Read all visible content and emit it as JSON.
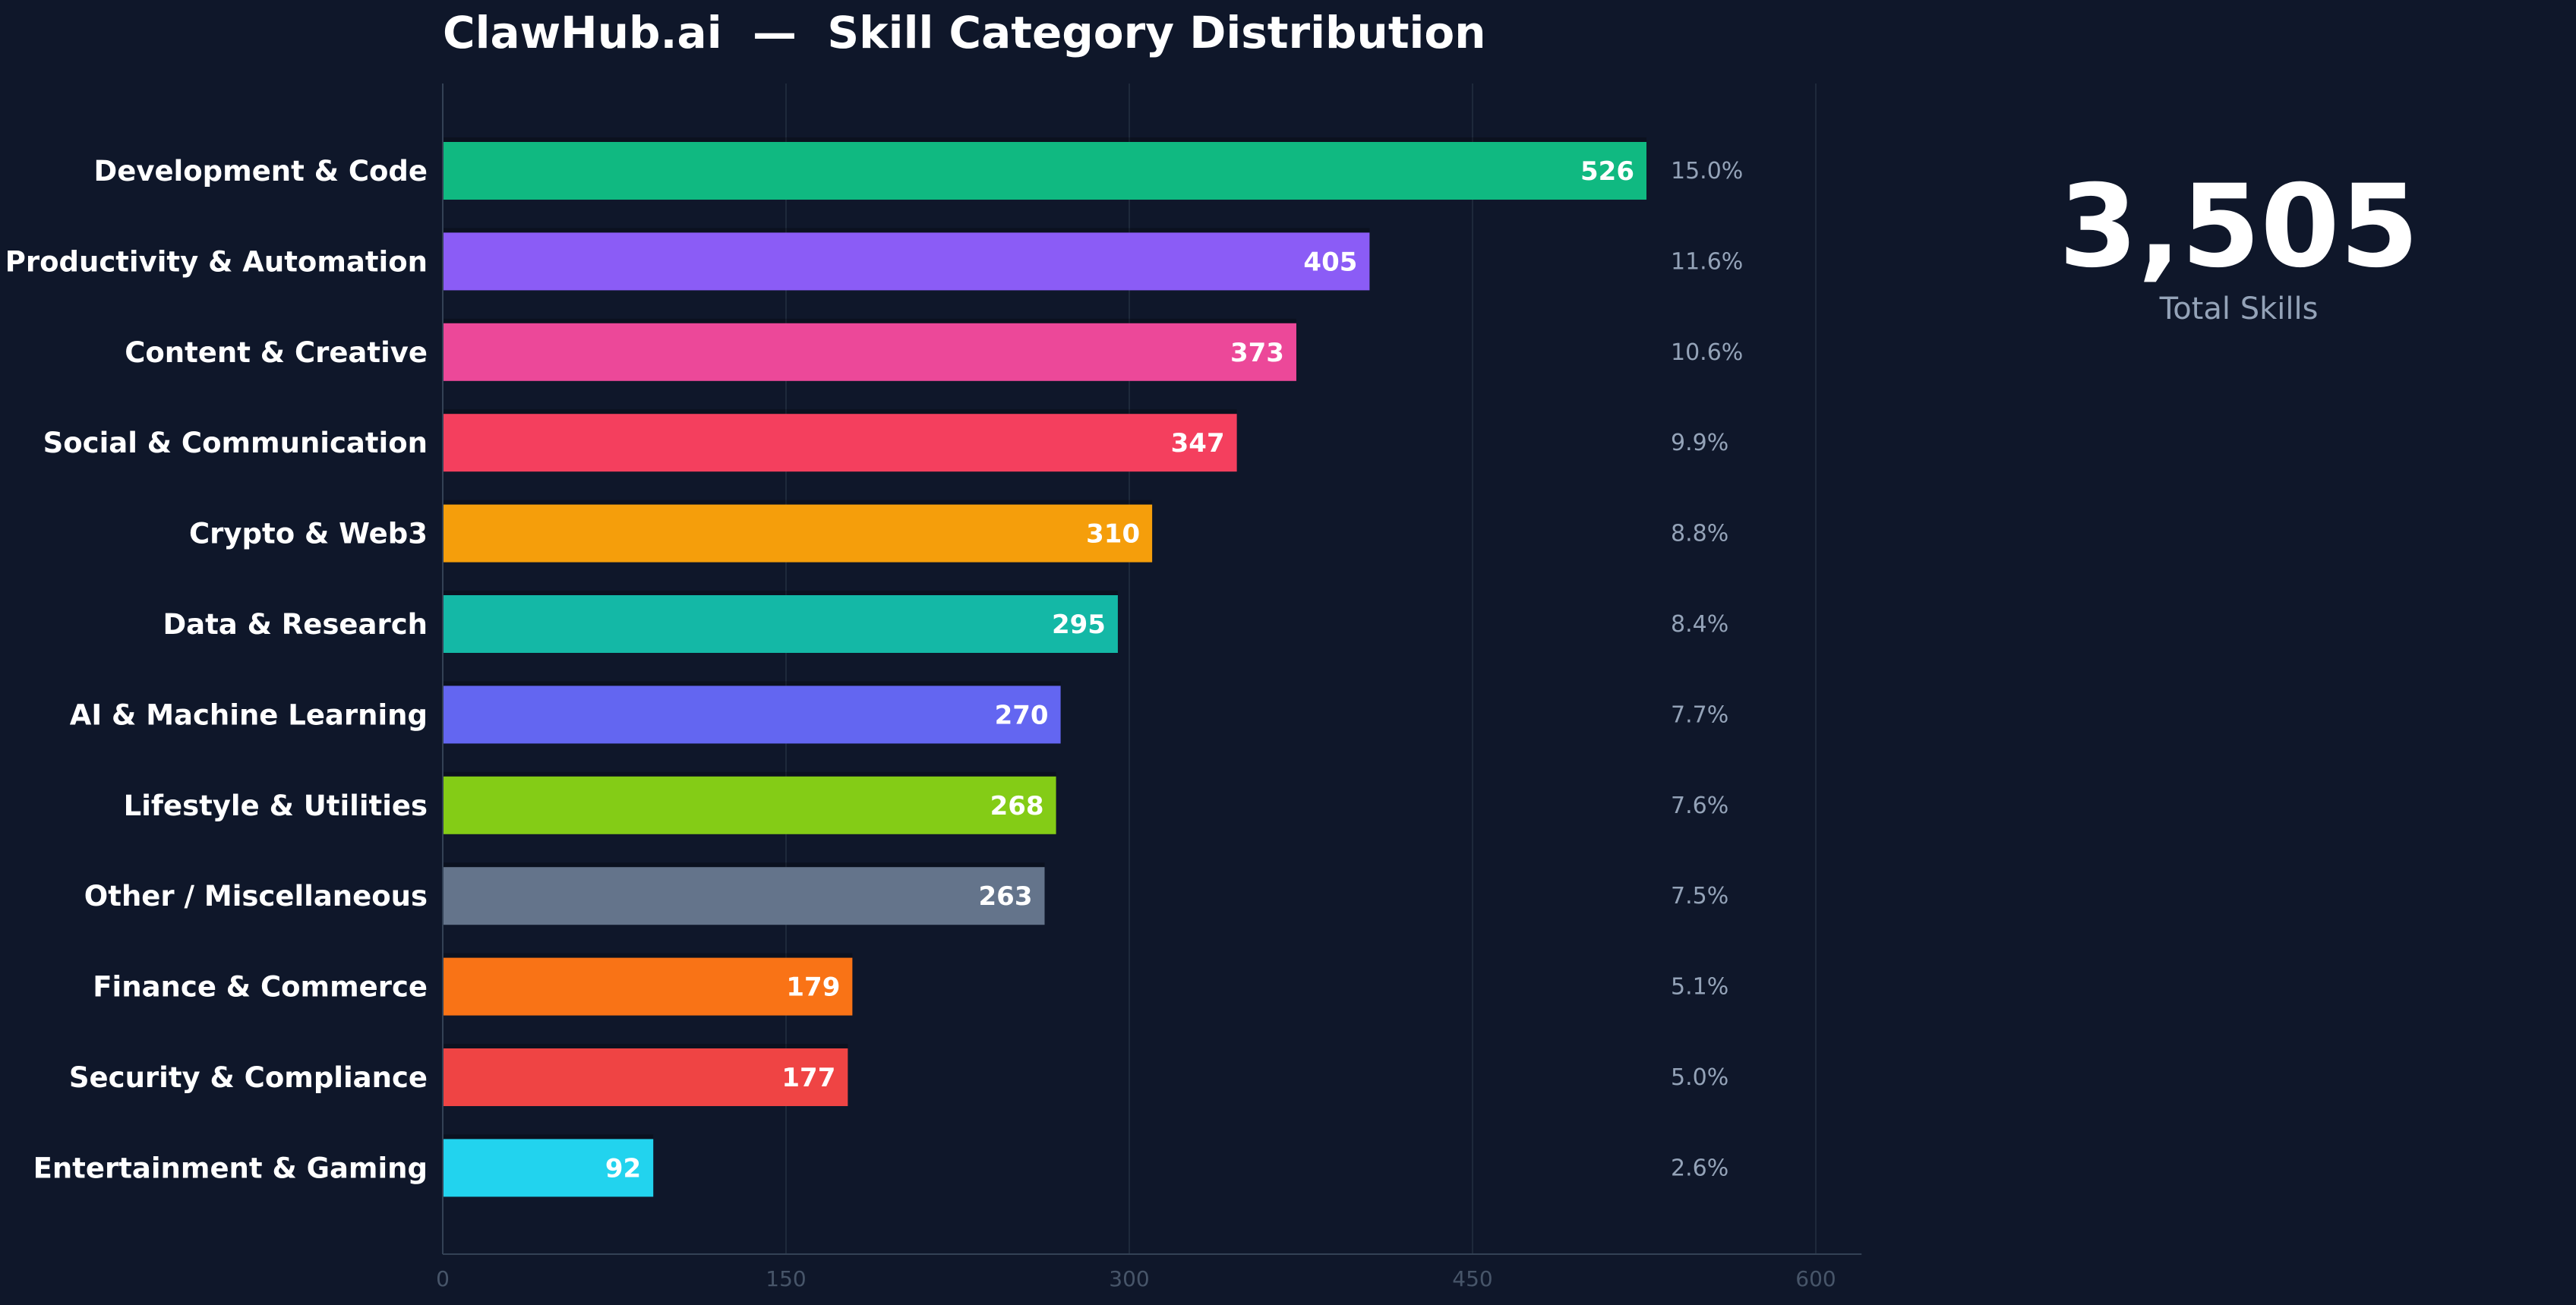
{
  "chart_data": {
    "type": "bar",
    "orientation": "horizontal",
    "title": "ClawHub.ai  —  Skill Category Distribution",
    "xlabel": "",
    "ylabel": "",
    "xlim": [
      0,
      620
    ],
    "xticks": [
      0,
      150,
      300,
      450,
      600
    ],
    "grid": true,
    "categories": [
      "Development & Code",
      "Productivity & Automation",
      "Content & Creative",
      "Social & Communication",
      "Crypto & Web3",
      "Data & Research",
      "AI & Machine Learning",
      "Lifestyle & Utilities",
      "Other / Miscellaneous",
      "Finance & Commerce",
      "Security & Compliance",
      "Entertainment & Gaming"
    ],
    "values": [
      526,
      405,
      373,
      347,
      310,
      295,
      270,
      268,
      263,
      179,
      177,
      92
    ],
    "percentages": [
      "15.0%",
      "11.6%",
      "10.6%",
      "9.9%",
      "8.8%",
      "8.4%",
      "7.7%",
      "7.6%",
      "7.5%",
      "5.1%",
      "5.0%",
      "2.6%"
    ],
    "colors": [
      "#10b981",
      "#8b5cf6",
      "#ec4899",
      "#f43f5e",
      "#f59e0b",
      "#14b8a6",
      "#6366f1",
      "#84cc16",
      "#64748b",
      "#f97316",
      "#ef4444",
      "#22d3ee"
    ]
  },
  "summary": {
    "total_value": "3,505",
    "total_label": "Total Skills"
  },
  "theme": {
    "background": "#0f172a",
    "grid_color": "#1e293b",
    "axis_color": "#334155",
    "tick_color": "#475569",
    "pct_color": "#94a3b8"
  }
}
